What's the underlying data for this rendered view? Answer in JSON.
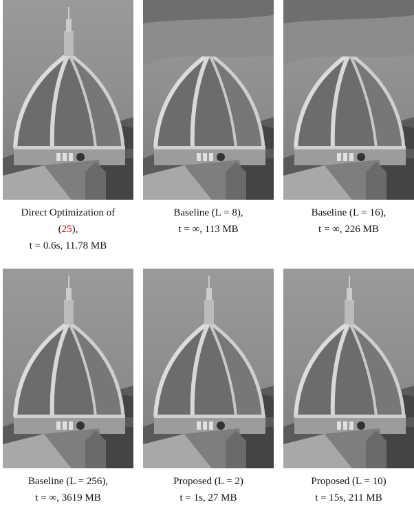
{
  "figure": {
    "panels": [
      {
        "caption": [
          [
            "Direct Optimization of"
          ],
          [
            "(",
            "25",
            "),"
          ],
          [
            "t = 0.6s, 11.78 MB"
          ]
        ]
      },
      {
        "caption": [
          [
            "Baseline (L = 8),"
          ],
          [
            "t = ∞, 113 MB"
          ]
        ]
      },
      {
        "caption": [
          [
            "Baseline (L = 16),"
          ],
          [
            "t = ∞, 226 MB"
          ]
        ]
      },
      {
        "caption": [
          [
            "Baseline (L = 256),"
          ],
          [
            "t = ∞, 3619 MB"
          ]
        ]
      },
      {
        "caption": [
          [
            "Proposed (L = 2)"
          ],
          [
            "t = 1s, 27 MB"
          ]
        ]
      },
      {
        "caption": [
          [
            "Proposed (L = 10)"
          ],
          [
            "t = 15s, 211 MB"
          ]
        ]
      }
    ]
  }
}
